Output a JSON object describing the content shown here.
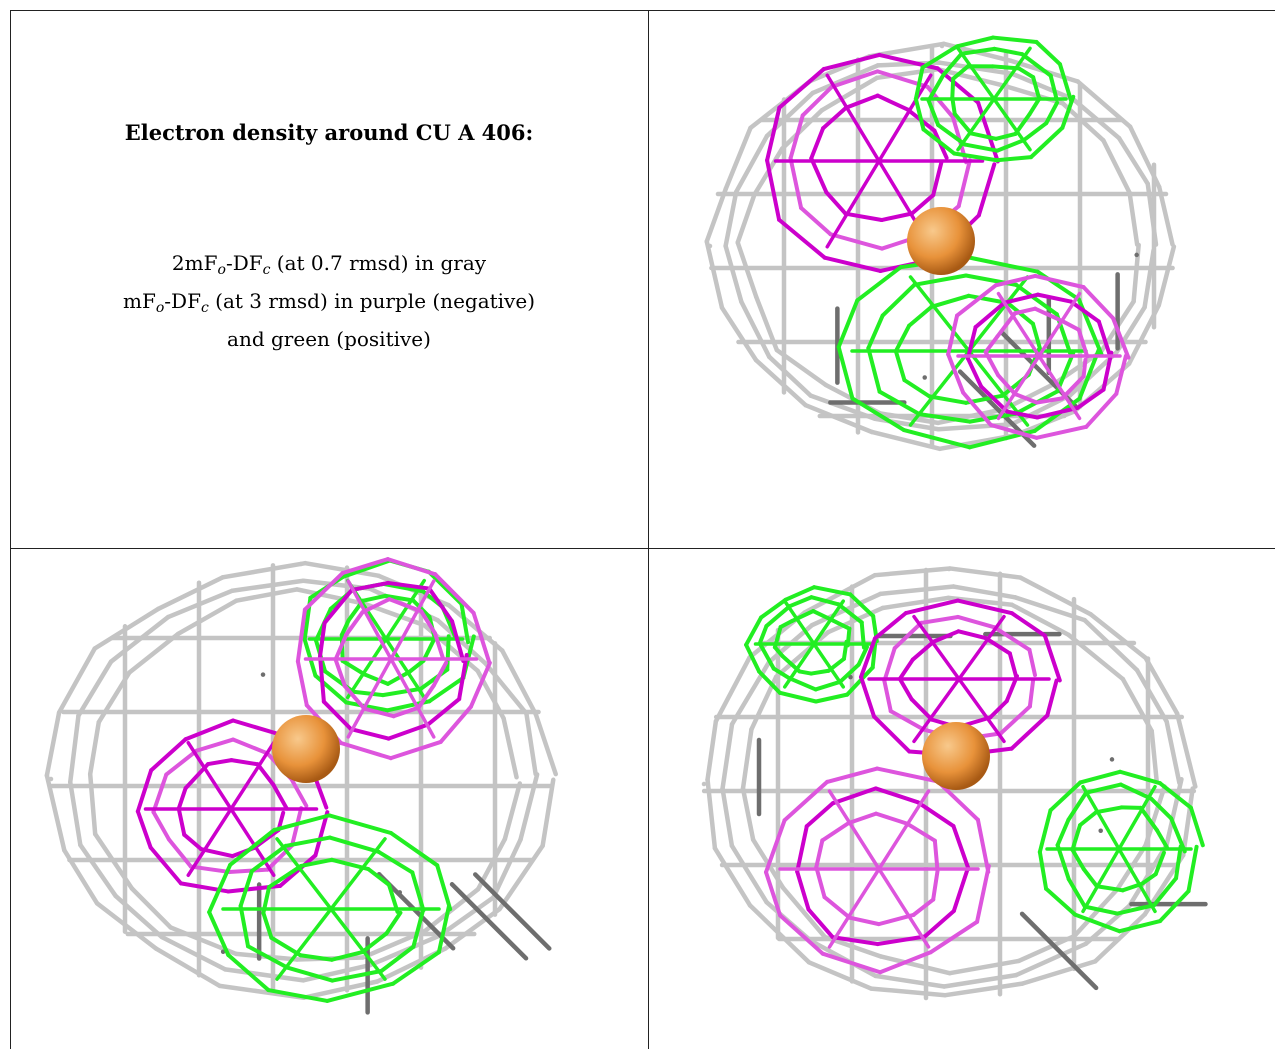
{
  "caption": {
    "title": "Electron density around CU A 406:",
    "map1": {
      "prefix": "2mF",
      "sub1": "o",
      "mid": "-DF",
      "sub2": "c",
      "suffix": " (at 0.7 rmsd) in gray"
    },
    "map2": {
      "prefix": "mF",
      "sub1": "o",
      "mid": "-DF",
      "sub2": "c",
      "suffix": " (at 3 rmsd) in purple (negative)"
    },
    "map2_line2": "and green (positive)"
  },
  "colors": {
    "gray_mesh": "#c4c4c4",
    "gray_mesh_dark": "#6e6e6e",
    "negative": "#cc00cc",
    "negative_light": "#dd55dd",
    "positive": "#22ee22",
    "atom": "#e8923a"
  }
}
